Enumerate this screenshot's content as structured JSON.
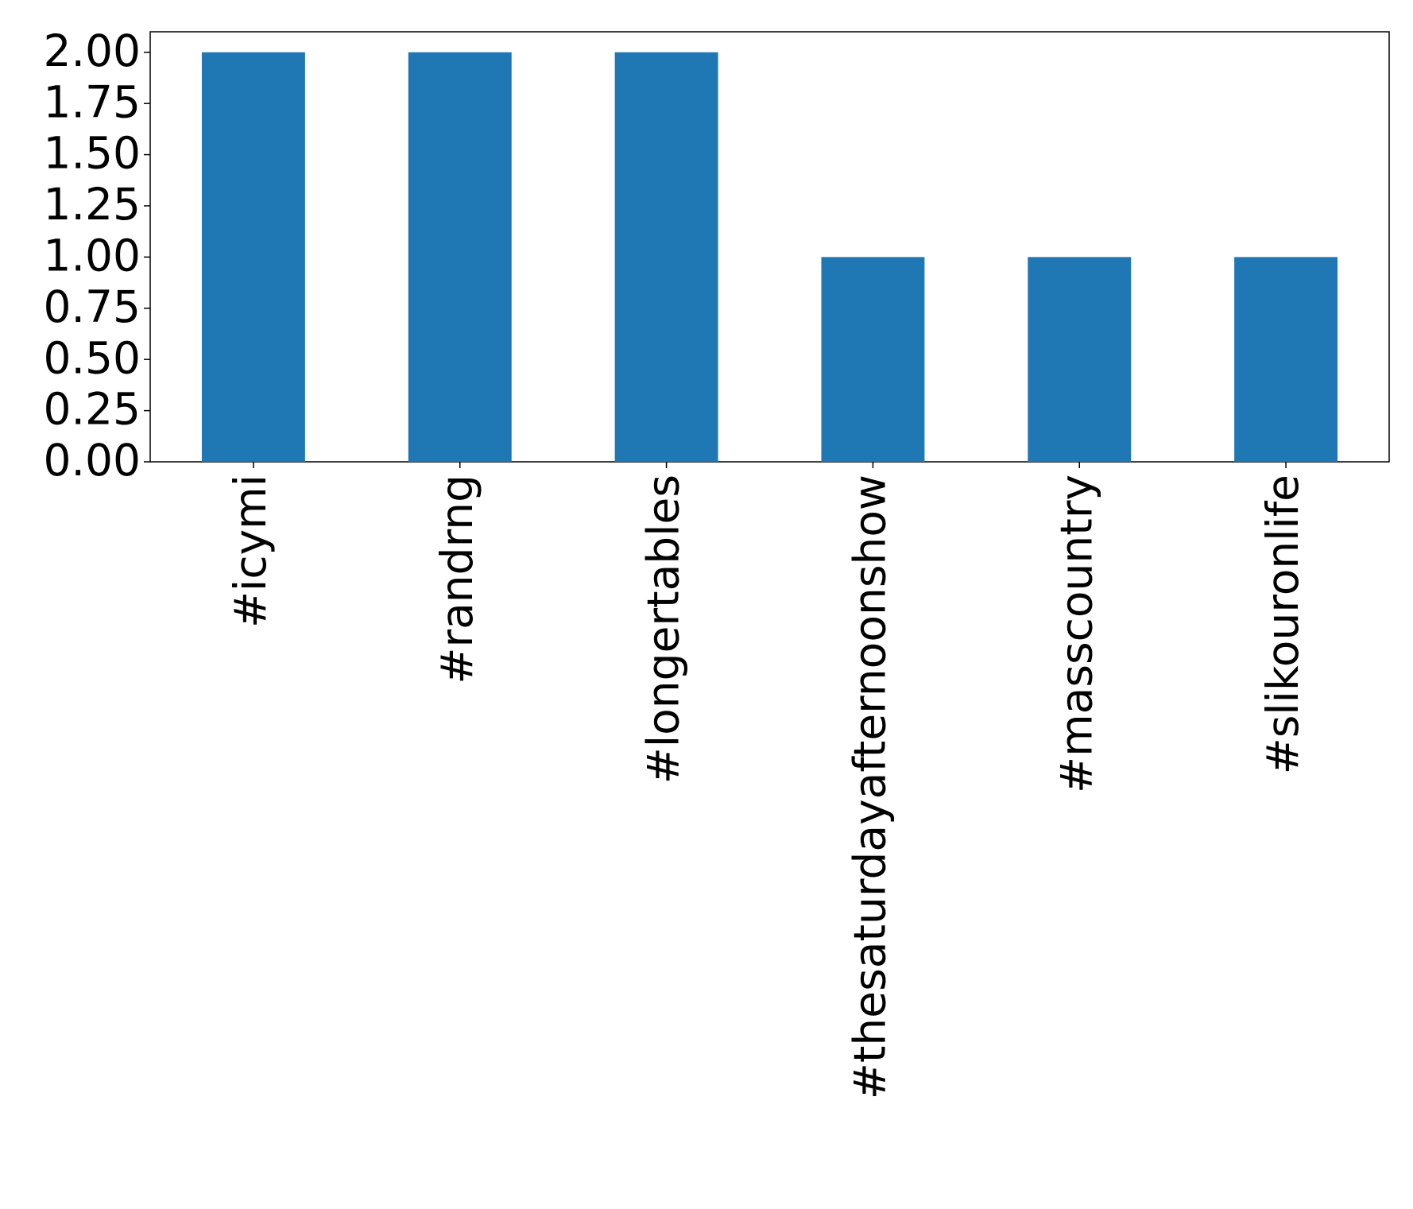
{
  "chart_data": {
    "type": "bar",
    "categories": [
      "#icymi",
      "#randrng",
      "#longertables",
      "#thesaturdayafternoonshow",
      "#masscountry",
      "#slikouronlife"
    ],
    "values": [
      2,
      2,
      2,
      1,
      1,
      1
    ],
    "color": "#1f77b4",
    "ylim": [
      0,
      2.1
    ],
    "yticks": [
      {
        "value": 0,
        "label": "0.00"
      },
      {
        "value": 0.25,
        "label": "0.25"
      },
      {
        "value": 0.5,
        "label": "0.50"
      },
      {
        "value": 0.75,
        "label": "0.75"
      },
      {
        "value": 1,
        "label": "1.00"
      },
      {
        "value": 1.25,
        "label": "1.25"
      },
      {
        "value": 1.5,
        "label": "1.50"
      },
      {
        "value": 1.75,
        "label": "1.75"
      },
      {
        "value": 2,
        "label": "2.00"
      }
    ],
    "grid": false
  }
}
